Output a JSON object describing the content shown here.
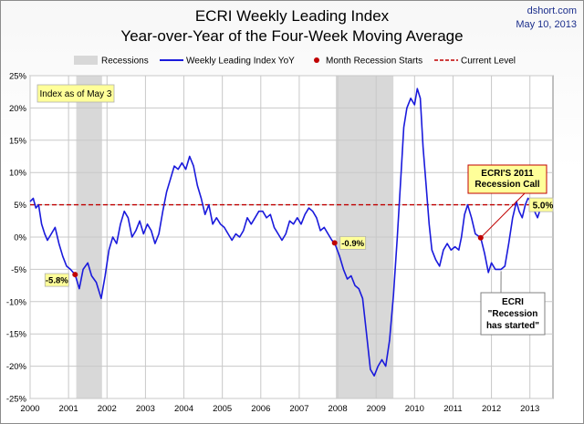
{
  "header": {
    "title_line1": "ECRI Weekly Leading Index",
    "title_line2": "Year-over-Year of the Four-Week Moving Average",
    "source": "dshort.com",
    "date": "May 10, 2013"
  },
  "colors": {
    "series_line": "#1a1adc",
    "current_level_line": "#c00000",
    "recession_band": "#d8d8d8",
    "recession_marker": "#c00000",
    "callout_fill": "#ffff99",
    "callout_border": "#c00000"
  },
  "chart_data": {
    "type": "line",
    "title": "ECRI Weekly Leading Index",
    "subtitle": "Year-over-Year of the Four-Week Moving Average",
    "xlim": [
      2000,
      2013.6
    ],
    "ylim": [
      -25,
      25
    ],
    "x_ticks": [
      "2000",
      "2001",
      "2002",
      "2003",
      "2004",
      "2005",
      "2006",
      "2007",
      "2008",
      "2009",
      "2010",
      "2011",
      "2012",
      "2013"
    ],
    "y_ticks": [
      "25%",
      "20%",
      "15%",
      "10%",
      "5%",
      "0%",
      "-5%",
      "-10%",
      "-15%",
      "-20%",
      "-25%"
    ],
    "grid": true,
    "legend_position": "top",
    "legend": {
      "recessions": "Recessions",
      "series": "Weekly Leading Index YoY",
      "recession_starts": "Month Recession Starts",
      "current": "Current Level"
    },
    "recessions": [
      {
        "start": 2001.2,
        "end": 2001.87
      },
      {
        "start": 2007.95,
        "end": 2009.45
      }
    ],
    "current_level": 5.0,
    "current_level_label": "5.0%",
    "index_note": "Index as of May 3",
    "recession_starts": [
      {
        "x": 2001.17,
        "y": -5.8,
        "label": "-5.8%"
      },
      {
        "x": 2007.92,
        "y": -0.9,
        "label": "-0.9%"
      },
      {
        "x": 2011.72,
        "y": -0.1,
        "label": ""
      }
    ],
    "annotations": [
      {
        "lines": [
          "ECRI'S 2011",
          "Recession Call"
        ],
        "target_x": 2011.72,
        "target_y": -0.1
      },
      {
        "lines": [
          "ECRI",
          "\"Recession",
          "has started\""
        ],
        "target_x": 2012.25,
        "target_y": -5.0
      }
    ],
    "series": [
      {
        "name": "Weekly Leading Index YoY",
        "points": [
          [
            2000.0,
            5.5
          ],
          [
            2000.08,
            6.0
          ],
          [
            2000.15,
            4.5
          ],
          [
            2000.22,
            5.0
          ],
          [
            2000.3,
            2.0
          ],
          [
            2000.38,
            0.5
          ],
          [
            2000.45,
            -0.5
          ],
          [
            2000.55,
            0.5
          ],
          [
            2000.65,
            1.5
          ],
          [
            2000.75,
            -1.0
          ],
          [
            2000.85,
            -3.0
          ],
          [
            2000.95,
            -4.5
          ],
          [
            2001.05,
            -5.0
          ],
          [
            2001.17,
            -5.8
          ],
          [
            2001.28,
            -8.0
          ],
          [
            2001.38,
            -5.0
          ],
          [
            2001.5,
            -4.0
          ],
          [
            2001.6,
            -6.0
          ],
          [
            2001.72,
            -7.0
          ],
          [
            2001.85,
            -9.5
          ],
          [
            2001.95,
            -6.0
          ],
          [
            2002.05,
            -2.0
          ],
          [
            2002.15,
            0.0
          ],
          [
            2002.25,
            -1.0
          ],
          [
            2002.35,
            2.0
          ],
          [
            2002.45,
            4.0
          ],
          [
            2002.55,
            3.0
          ],
          [
            2002.65,
            0.0
          ],
          [
            2002.75,
            1.0
          ],
          [
            2002.85,
            2.5
          ],
          [
            2002.95,
            0.5
          ],
          [
            2003.05,
            2.0
          ],
          [
            2003.15,
            1.0
          ],
          [
            2003.25,
            -1.0
          ],
          [
            2003.35,
            0.5
          ],
          [
            2003.45,
            4.0
          ],
          [
            2003.55,
            7.0
          ],
          [
            2003.65,
            9.0
          ],
          [
            2003.75,
            11.0
          ],
          [
            2003.85,
            10.5
          ],
          [
            2003.95,
            11.5
          ],
          [
            2004.05,
            10.5
          ],
          [
            2004.15,
            12.5
          ],
          [
            2004.25,
            11.0
          ],
          [
            2004.35,
            8.0
          ],
          [
            2004.45,
            6.0
          ],
          [
            2004.55,
            3.5
          ],
          [
            2004.65,
            5.0
          ],
          [
            2004.75,
            2.0
          ],
          [
            2004.85,
            3.0
          ],
          [
            2004.95,
            2.0
          ],
          [
            2005.05,
            1.5
          ],
          [
            2005.15,
            0.5
          ],
          [
            2005.25,
            -0.5
          ],
          [
            2005.35,
            0.5
          ],
          [
            2005.45,
            0.0
          ],
          [
            2005.55,
            1.0
          ],
          [
            2005.65,
            3.0
          ],
          [
            2005.75,
            2.0
          ],
          [
            2005.85,
            3.0
          ],
          [
            2005.95,
            4.0
          ],
          [
            2006.05,
            4.0
          ],
          [
            2006.15,
            3.0
          ],
          [
            2006.25,
            3.5
          ],
          [
            2006.35,
            1.5
          ],
          [
            2006.45,
            0.5
          ],
          [
            2006.55,
            -0.5
          ],
          [
            2006.65,
            0.5
          ],
          [
            2006.75,
            2.5
          ],
          [
            2006.85,
            2.0
          ],
          [
            2006.95,
            3.0
          ],
          [
            2007.05,
            2.0
          ],
          [
            2007.15,
            3.5
          ],
          [
            2007.25,
            4.5
          ],
          [
            2007.35,
            4.0
          ],
          [
            2007.45,
            3.0
          ],
          [
            2007.55,
            1.0
          ],
          [
            2007.65,
            1.5
          ],
          [
            2007.75,
            0.5
          ],
          [
            2007.85,
            -0.5
          ],
          [
            2007.92,
            -0.9
          ],
          [
            2008.05,
            -3.0
          ],
          [
            2008.15,
            -5.0
          ],
          [
            2008.25,
            -6.5
          ],
          [
            2008.35,
            -6.0
          ],
          [
            2008.45,
            -7.5
          ],
          [
            2008.55,
            -8.0
          ],
          [
            2008.65,
            -9.5
          ],
          [
            2008.75,
            -15.0
          ],
          [
            2008.85,
            -20.5
          ],
          [
            2008.95,
            -21.5
          ],
          [
            2009.05,
            -20.0
          ],
          [
            2009.15,
            -19.0
          ],
          [
            2009.25,
            -20.0
          ],
          [
            2009.35,
            -16.0
          ],
          [
            2009.45,
            -9.0
          ],
          [
            2009.55,
            0.0
          ],
          [
            2009.65,
            10.0
          ],
          [
            2009.72,
            17.0
          ],
          [
            2009.8,
            20.0
          ],
          [
            2009.9,
            21.5
          ],
          [
            2010.0,
            20.5
          ],
          [
            2010.07,
            23.0
          ],
          [
            2010.15,
            21.5
          ],
          [
            2010.22,
            14.0
          ],
          [
            2010.3,
            8.0
          ],
          [
            2010.38,
            2.0
          ],
          [
            2010.45,
            -2.0
          ],
          [
            2010.55,
            -3.5
          ],
          [
            2010.65,
            -4.5
          ],
          [
            2010.75,
            -2.0
          ],
          [
            2010.85,
            -1.0
          ],
          [
            2010.95,
            -2.0
          ],
          [
            2011.05,
            -1.5
          ],
          [
            2011.15,
            -2.0
          ],
          [
            2011.22,
            0.0
          ],
          [
            2011.3,
            3.5
          ],
          [
            2011.38,
            5.0
          ],
          [
            2011.48,
            3.0
          ],
          [
            2011.58,
            0.5
          ],
          [
            2011.72,
            -0.1
          ],
          [
            2011.82,
            -2.5
          ],
          [
            2011.92,
            -5.5
          ],
          [
            2012.0,
            -4.0
          ],
          [
            2012.1,
            -5.0
          ],
          [
            2012.25,
            -5.0
          ],
          [
            2012.35,
            -4.5
          ],
          [
            2012.45,
            -1.0
          ],
          [
            2012.55,
            3.0
          ],
          [
            2012.65,
            5.5
          ],
          [
            2012.72,
            4.0
          ],
          [
            2012.8,
            3.0
          ],
          [
            2012.88,
            5.0
          ],
          [
            2012.95,
            6.0
          ],
          [
            2013.05,
            5.5
          ],
          [
            2013.12,
            4.0
          ],
          [
            2013.2,
            3.0
          ],
          [
            2013.28,
            4.5
          ],
          [
            2013.35,
            5.0
          ]
        ]
      }
    ]
  }
}
